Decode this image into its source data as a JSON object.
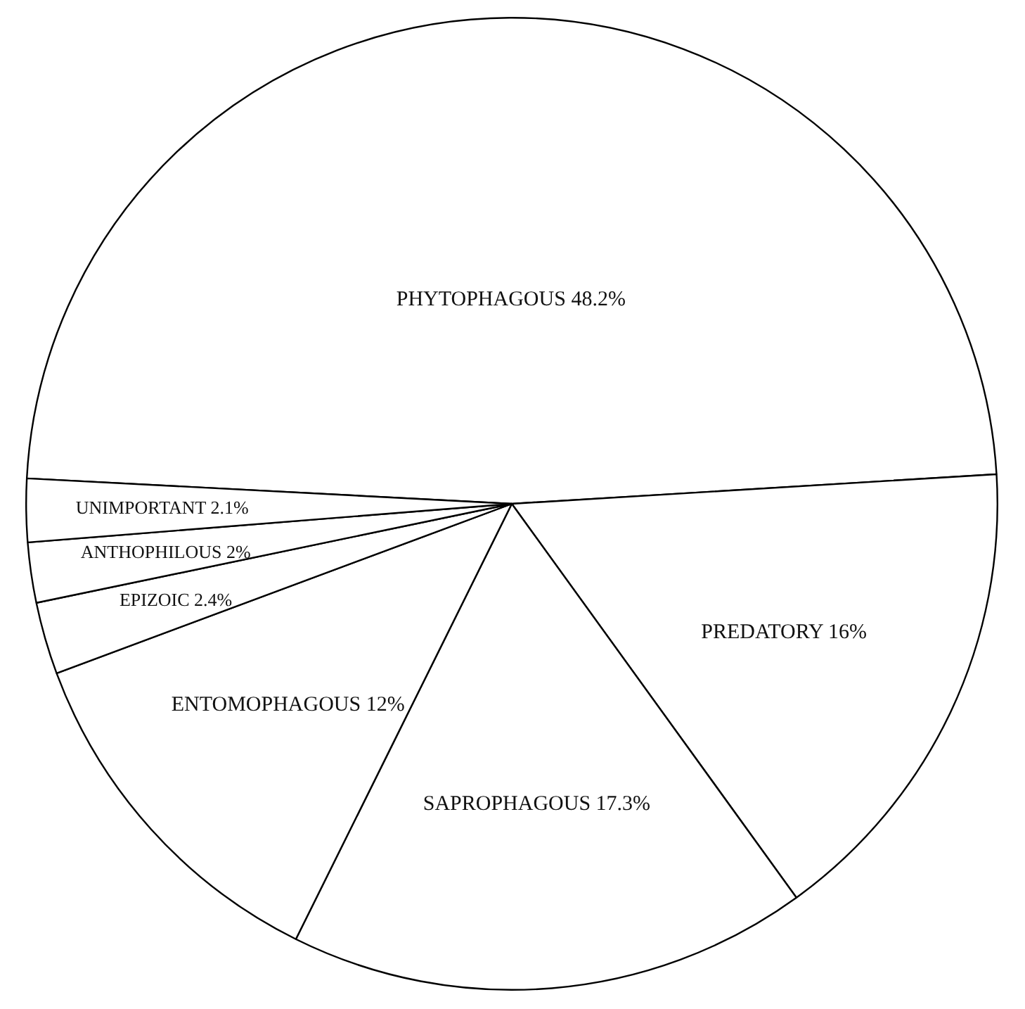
{
  "chart_data": {
    "type": "pie",
    "categories": [
      "PHYTOPHAGOUS",
      "PREDATORY",
      "SAPROPHAGOUS",
      "ENTOMOPHAGOUS",
      "EPIZOIC",
      "ANTHOPHILOUS",
      "UNIMPORTANT"
    ],
    "values": [
      48.2,
      16,
      17.3,
      12,
      2.4,
      2,
      2.1
    ],
    "colors": [
      "#ffffff",
      "#ffffff",
      "#ffffff",
      "#ffffff",
      "#ffffff",
      "#ffffff",
      "#ffffff"
    ],
    "value_labels": [
      "48.2%",
      "16%",
      "17.3%",
      "12%",
      "2.4%",
      "2%",
      "2.1%"
    ],
    "legend": false
  }
}
